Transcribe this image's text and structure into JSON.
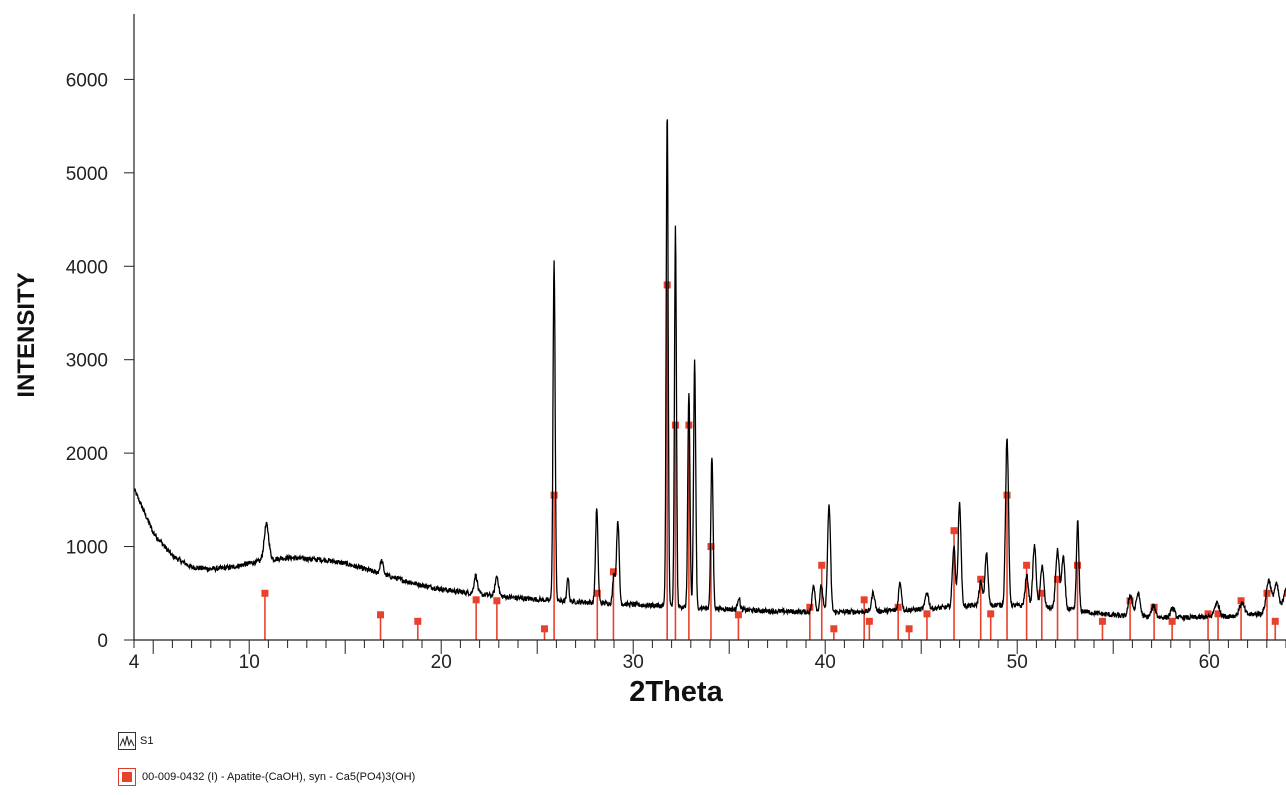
{
  "colors": {
    "pattern": "#000000",
    "reference": "#e8412d",
    "axis": "#222222"
  },
  "chart_data": {
    "type": "line",
    "xlabel": "2Theta",
    "ylabel": "INTENSITY",
    "xlim": [
      4,
      64
    ],
    "ylim": [
      0,
      6700
    ],
    "x_ticks": [
      4,
      10,
      20,
      30,
      40,
      50,
      60
    ],
    "y_ticks": [
      0,
      1000,
      2000,
      3000,
      4000,
      5000,
      6000
    ],
    "grid": false,
    "legend": [
      {
        "label": "S1",
        "icon": "xrd-scan-icon"
      },
      {
        "label": "00-009-0432 (I) - Apatite-(CaOH), syn - Ca5(PO4)3(OH)",
        "icon": "red-square-icon"
      }
    ],
    "series": [
      {
        "name": "S1",
        "background": [
          [
            4,
            1620
          ],
          [
            5,
            1150
          ],
          [
            6,
            900
          ],
          [
            7,
            780
          ],
          [
            8,
            760
          ],
          [
            9,
            775
          ],
          [
            10,
            820
          ],
          [
            11,
            860
          ],
          [
            12,
            880
          ],
          [
            13,
            870
          ],
          [
            14,
            855
          ],
          [
            15,
            820
          ],
          [
            16,
            760
          ],
          [
            17,
            700
          ],
          [
            18,
            640
          ],
          [
            19,
            585
          ],
          [
            20,
            545
          ],
          [
            21,
            515
          ],
          [
            22,
            490
          ],
          [
            23,
            470
          ],
          [
            24,
            450
          ],
          [
            25,
            435
          ],
          [
            26,
            420
          ],
          [
            27,
            410
          ],
          [
            28,
            400
          ],
          [
            29,
            390
          ],
          [
            30,
            380
          ],
          [
            31,
            370
          ],
          [
            32,
            360
          ],
          [
            33,
            350
          ],
          [
            34,
            340
          ],
          [
            35,
            330
          ],
          [
            36,
            320
          ],
          [
            37,
            310
          ],
          [
            38,
            305
          ],
          [
            39,
            300
          ],
          [
            40,
            300
          ],
          [
            41,
            300
          ],
          [
            42,
            305
          ],
          [
            43,
            310
          ],
          [
            44,
            320
          ],
          [
            45,
            330
          ],
          [
            46,
            345
          ],
          [
            47,
            360
          ],
          [
            48,
            370
          ],
          [
            49,
            375
          ],
          [
            50,
            370
          ],
          [
            51,
            360
          ],
          [
            52,
            340
          ],
          [
            53,
            320
          ],
          [
            54,
            290
          ],
          [
            55,
            265
          ],
          [
            56,
            250
          ],
          [
            57,
            245
          ],
          [
            58,
            240
          ],
          [
            59,
            240
          ],
          [
            60,
            245
          ],
          [
            61,
            255
          ],
          [
            62,
            270
          ],
          [
            63,
            290
          ],
          [
            64,
            300
          ]
        ],
        "peaks": [
          [
            10.9,
            380,
            0.28
          ],
          [
            16.9,
            140,
            0.2
          ],
          [
            21.8,
            200,
            0.2
          ],
          [
            22.9,
            210,
            0.2
          ],
          [
            25.88,
            3620,
            0.13
          ],
          [
            26.6,
            270,
            0.12
          ],
          [
            28.1,
            1000,
            0.15
          ],
          [
            29.0,
            320,
            0.15
          ],
          [
            29.2,
            900,
            0.16
          ],
          [
            31.77,
            5300,
            0.12
          ],
          [
            32.2,
            4050,
            0.12
          ],
          [
            32.9,
            2300,
            0.13
          ],
          [
            33.2,
            2650,
            0.13
          ],
          [
            34.1,
            1620,
            0.14
          ],
          [
            35.5,
            130,
            0.15
          ],
          [
            39.4,
            290,
            0.18
          ],
          [
            39.8,
            280,
            0.18
          ],
          [
            40.2,
            1150,
            0.18
          ],
          [
            42.5,
            200,
            0.2
          ],
          [
            43.9,
            300,
            0.18
          ],
          [
            45.3,
            180,
            0.2
          ],
          [
            46.7,
            650,
            0.18
          ],
          [
            47.0,
            1100,
            0.18
          ],
          [
            48.1,
            250,
            0.2
          ],
          [
            48.4,
            560,
            0.18
          ],
          [
            49.47,
            1780,
            0.18
          ],
          [
            50.5,
            320,
            0.2
          ],
          [
            50.9,
            650,
            0.2
          ],
          [
            51.3,
            450,
            0.2
          ],
          [
            52.1,
            620,
            0.22
          ],
          [
            52.4,
            560,
            0.2
          ],
          [
            53.15,
            950,
            0.15
          ],
          [
            55.9,
            230,
            0.25
          ],
          [
            56.3,
            250,
            0.25
          ],
          [
            57.1,
            120,
            0.25
          ],
          [
            58.1,
            100,
            0.25
          ],
          [
            60.4,
            150,
            0.3
          ],
          [
            61.7,
            130,
            0.3
          ],
          [
            63.1,
            350,
            0.3
          ],
          [
            63.5,
            300,
            0.3
          ],
          [
            64.0,
            260,
            0.3
          ]
        ]
      },
      {
        "name": "00-009-0432 (I) - Apatite-(CaOH), syn - Ca5(PO4)3(OH)",
        "sticks": [
          [
            10.82,
            500
          ],
          [
            16.84,
            270
          ],
          [
            18.78,
            200
          ],
          [
            21.82,
            430
          ],
          [
            22.9,
            420
          ],
          [
            25.38,
            120
          ],
          [
            25.88,
            1550
          ],
          [
            28.13,
            500
          ],
          [
            28.97,
            730
          ],
          [
            31.77,
            3800
          ],
          [
            32.2,
            2300
          ],
          [
            32.9,
            2300
          ],
          [
            34.05,
            1000
          ],
          [
            35.48,
            270
          ],
          [
            39.2,
            350
          ],
          [
            39.82,
            800
          ],
          [
            40.45,
            120
          ],
          [
            42.03,
            430
          ],
          [
            42.3,
            200
          ],
          [
            43.8,
            350
          ],
          [
            44.37,
            120
          ],
          [
            45.3,
            280
          ],
          [
            46.71,
            1170
          ],
          [
            48.1,
            650
          ],
          [
            48.62,
            280
          ],
          [
            49.47,
            1550
          ],
          [
            50.49,
            800
          ],
          [
            51.28,
            500
          ],
          [
            52.1,
            650
          ],
          [
            53.14,
            800
          ],
          [
            54.44,
            200
          ],
          [
            55.88,
            420
          ],
          [
            57.13,
            350
          ],
          [
            58.07,
            200
          ],
          [
            59.94,
            280
          ],
          [
            60.46,
            280
          ],
          [
            61.66,
            420
          ],
          [
            63.01,
            500
          ],
          [
            63.44,
            200
          ],
          [
            64.08,
            500
          ]
        ]
      }
    ]
  }
}
